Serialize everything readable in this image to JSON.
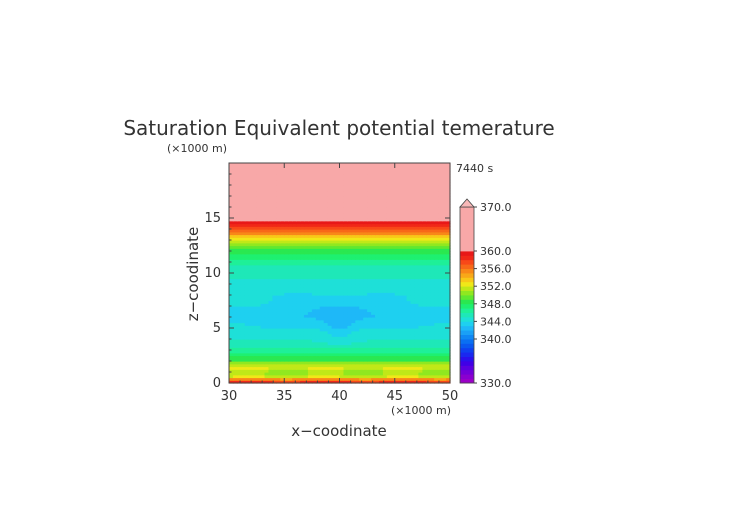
{
  "chart_data": {
    "type": "heatmap",
    "title": "Saturation Equivalent potential temerature",
    "xlabel": "x−coodinate",
    "ylabel": "z−coodinate",
    "x_unit": "(×1000 m)",
    "y_unit": "(×1000 m)",
    "time_label": "7440 s",
    "xlim": [
      30,
      50
    ],
    "ylim": [
      0,
      20
    ],
    "x_ticks": [
      "30",
      "35",
      "40",
      "45",
      "50"
    ],
    "y_ticks": [
      "0",
      "5",
      "10",
      "15"
    ],
    "x_tick_values": [
      30,
      35,
      40,
      45,
      50
    ],
    "y_tick_values": [
      0,
      5,
      10,
      15
    ],
    "colorbar": {
      "min": 330,
      "max": 370,
      "labels": [
        "330.0",
        "340.0",
        "344.0",
        "348.0",
        "352.0",
        "356.0",
        "360.0",
        "370.0"
      ],
      "label_values": [
        330,
        340,
        344,
        348,
        352,
        356,
        360,
        370
      ],
      "levels": [
        330,
        331,
        332,
        333,
        334,
        335,
        336,
        337,
        338,
        339,
        340,
        341,
        342,
        343,
        344,
        345,
        346,
        347,
        348,
        349,
        350,
        351,
        352,
        353,
        354,
        355,
        356,
        357,
        358,
        359,
        360,
        370
      ],
      "colors": [
        "#9b00c8",
        "#8a00d0",
        "#7200d8",
        "#5a00e0",
        "#4000e6",
        "#2a10ec",
        "#1a28f0",
        "#0f40f0",
        "#0a58f0",
        "#0a70f2",
        "#1088f4",
        "#1aa0f6",
        "#1eb8f8",
        "#1ed0f0",
        "#1ee0d8",
        "#1ee8b8",
        "#1ef098",
        "#1ef070",
        "#2ae850",
        "#60e830",
        "#90e820",
        "#c0e818",
        "#f0e818",
        "#f8c818",
        "#f8a818",
        "#f88818",
        "#f86818",
        "#f84818",
        "#f02818",
        "#e81818",
        "#f8a8a8"
      ],
      "over_color": "#f8b8b8"
    },
    "profile": {
      "z": [
        0,
        0.3,
        0.6,
        1.0,
        1.5,
        2.2,
        3.0,
        4.0,
        5.0,
        6.0,
        7.0,
        8.0,
        9.0,
        10.0,
        11.0,
        12.0,
        12.8,
        13.5,
        14.0,
        14.5,
        15.0,
        16.0,
        18.0,
        20.0
      ],
      "theta": [
        359.5,
        356.5,
        352.0,
        350.5,
        352.5,
        348.5,
        346.5,
        345.0,
        344.2,
        343.8,
        344.0,
        344.2,
        344.8,
        345.3,
        346.2,
        348.5,
        351.5,
        354.5,
        357.0,
        359.5,
        361.0,
        364.0,
        366.0,
        367.0
      ]
    },
    "lows": [
      {
        "x": 40.0,
        "z": 5.3,
        "rx": 1.4,
        "rz": 1.5,
        "d": 1.1
      },
      {
        "x": 38.0,
        "z": 6.5,
        "rx": 2.6,
        "rz": 1.1,
        "d": 0.9
      },
      {
        "x": 42.0,
        "z": 6.5,
        "rx": 2.6,
        "rz": 1.1,
        "d": 0.9
      },
      {
        "x": 34.5,
        "z": 5.8,
        "rx": 2.2,
        "rz": 0.7,
        "d": 0.6
      },
      {
        "x": 45.5,
        "z": 5.8,
        "rx": 2.2,
        "rz": 0.7,
        "d": 0.6
      },
      {
        "x": 36.0,
        "z": 7.8,
        "rx": 1.8,
        "rz": 0.5,
        "d": 0.5
      },
      {
        "x": 44.0,
        "z": 7.8,
        "rx": 1.8,
        "rz": 0.5,
        "d": 0.5
      },
      {
        "x": 40.0,
        "z": 3.7,
        "rx": 3.0,
        "rz": 0.6,
        "d": 0.4
      }
    ]
  }
}
